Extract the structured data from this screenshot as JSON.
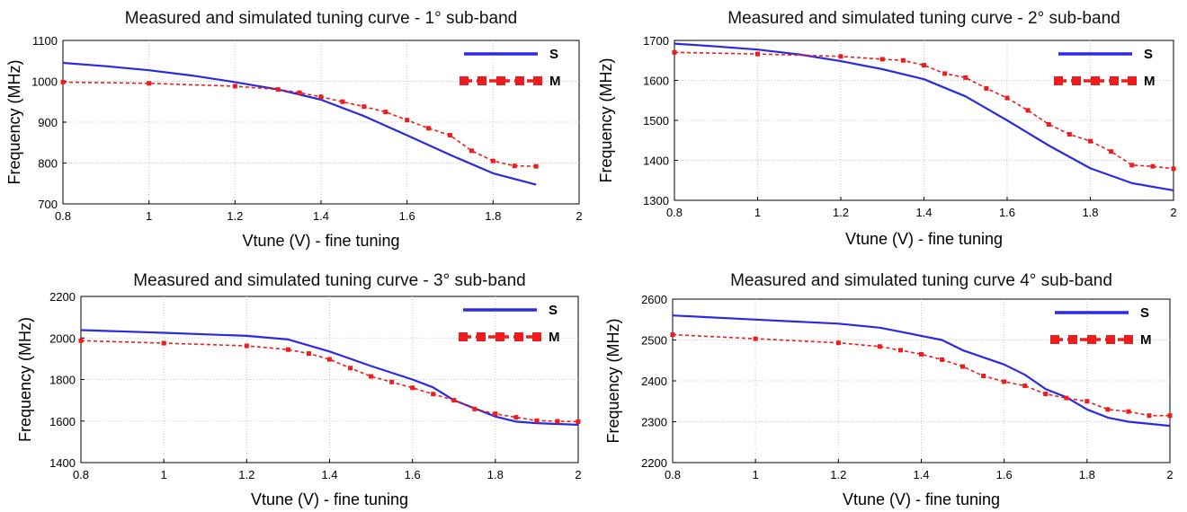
{
  "chart_data": [
    {
      "type": "line",
      "title": "Measured and simulated tuning curve - 1° sub-band",
      "xlabel": "Vtune (V)  -  fine tuning",
      "ylabel": "Frequency (MHz)",
      "xlim": [
        0.8,
        2
      ],
      "ylim": [
        700,
        1100
      ],
      "xticks": [
        "0.8",
        "1",
        "1.2",
        "1.4",
        "1.6",
        "1.8",
        "2"
      ],
      "yticks": [
        "700",
        "800",
        "900",
        "1000",
        "1100"
      ],
      "grid": true,
      "legend_position": "top-right",
      "colors": {
        "S": "#2a2ae0",
        "M": "#ee1c1c"
      },
      "series": [
        {
          "name": "S",
          "style": "solid",
          "x": [
            0.8,
            0.9,
            1.0,
            1.1,
            1.2,
            1.3,
            1.4,
            1.5,
            1.6,
            1.7,
            1.8,
            1.9
          ],
          "y": [
            1045,
            1037,
            1027,
            1014,
            998,
            980,
            955,
            915,
            868,
            820,
            775,
            747
          ]
        },
        {
          "name": "M",
          "style": "dashed-square-markers",
          "x": [
            0.8,
            1.0,
            1.2,
            1.3,
            1.35,
            1.4,
            1.45,
            1.5,
            1.55,
            1.6,
            1.65,
            1.7,
            1.75,
            1.8,
            1.85,
            1.9
          ],
          "y": [
            998,
            995,
            988,
            980,
            972,
            962,
            950,
            938,
            925,
            905,
            885,
            868,
            830,
            805,
            793,
            792
          ]
        }
      ]
    },
    {
      "type": "line",
      "title": "Measured and simulated tuning curve - 2° sub-band",
      "xlabel": "Vtune (V)  -  fine tuning",
      "ylabel": "Frequency (MHz)",
      "xlim": [
        0.8,
        2
      ],
      "ylim": [
        1300,
        1700
      ],
      "xticks": [
        "0.8",
        "1",
        "1.2",
        "1.4",
        "1.6",
        "1.8",
        "2"
      ],
      "yticks": [
        "1300",
        "1400",
        "1500",
        "1600",
        "1700"
      ],
      "grid": true,
      "legend_position": "top-right",
      "colors": {
        "S": "#2a2ae0",
        "M": "#ee1c1c"
      },
      "series": [
        {
          "name": "S",
          "style": "solid",
          "x": [
            0.8,
            0.9,
            1.0,
            1.1,
            1.2,
            1.3,
            1.4,
            1.5,
            1.6,
            1.7,
            1.8,
            1.9,
            2.0
          ],
          "y": [
            1692,
            1685,
            1677,
            1665,
            1648,
            1628,
            1603,
            1560,
            1500,
            1437,
            1380,
            1343,
            1325
          ]
        },
        {
          "name": "M",
          "style": "dashed-square-markers",
          "x": [
            0.8,
            1.0,
            1.2,
            1.3,
            1.35,
            1.4,
            1.45,
            1.5,
            1.55,
            1.6,
            1.65,
            1.7,
            1.75,
            1.8,
            1.85,
            1.9,
            1.95,
            2.0
          ],
          "y": [
            1670,
            1666,
            1660,
            1653,
            1650,
            1638,
            1617,
            1607,
            1580,
            1556,
            1525,
            1490,
            1465,
            1448,
            1422,
            1388,
            1385,
            1379
          ]
        }
      ]
    },
    {
      "type": "line",
      "title": "Measured and simulated tuning curve - 3° sub-band",
      "xlabel": "Vtune (V)  -  fine tuning",
      "ylabel": "Frequency (MHz)",
      "xlim": [
        0.8,
        2
      ],
      "ylim": [
        1400,
        2200
      ],
      "xticks": [
        "0.8",
        "1",
        "1.2",
        "1.4",
        "1.6",
        "1.8",
        "2"
      ],
      "yticks": [
        "1400",
        "1600",
        "1800",
        "2000",
        "2200"
      ],
      "grid": true,
      "legend_position": "top-right",
      "colors": {
        "S": "#2a2ae0",
        "M": "#ee1c1c"
      },
      "series": [
        {
          "name": "S",
          "style": "solid",
          "x": [
            0.8,
            1.0,
            1.2,
            1.3,
            1.4,
            1.5,
            1.6,
            1.65,
            1.7,
            1.8,
            1.85,
            1.9,
            2.0
          ],
          "y": [
            2038,
            2025,
            2010,
            1993,
            1935,
            1865,
            1800,
            1762,
            1700,
            1622,
            1597,
            1590,
            1582
          ]
        },
        {
          "name": "M",
          "style": "dashed-square-markers",
          "x": [
            0.8,
            1.0,
            1.2,
            1.3,
            1.35,
            1.4,
            1.45,
            1.5,
            1.55,
            1.6,
            1.65,
            1.7,
            1.75,
            1.8,
            1.85,
            1.9,
            1.95,
            2.0
          ],
          "y": [
            1987,
            1975,
            1962,
            1944,
            1925,
            1897,
            1855,
            1815,
            1788,
            1760,
            1730,
            1700,
            1658,
            1635,
            1618,
            1602,
            1599,
            1597
          ]
        }
      ]
    },
    {
      "type": "line",
      "title": "Measured and simulated tuning curve 4° sub-band",
      "xlabel": "Vtune (V)  -  fine tuning",
      "ylabel": "Frequency (MHz)",
      "xlim": [
        0.8,
        2
      ],
      "ylim": [
        2200,
        2600
      ],
      "xticks": [
        "0.8",
        "1",
        "1.2",
        "1.4",
        "1.6",
        "1.8",
        "2"
      ],
      "yticks": [
        "2200",
        "2300",
        "2400",
        "2500",
        "2600"
      ],
      "grid": true,
      "legend_position": "top-right",
      "colors": {
        "S": "#2a2ae0",
        "M": "#ee1c1c"
      },
      "series": [
        {
          "name": "S",
          "style": "solid",
          "x": [
            0.8,
            1.0,
            1.2,
            1.3,
            1.4,
            1.45,
            1.5,
            1.6,
            1.65,
            1.7,
            1.75,
            1.8,
            1.85,
            1.9,
            2.0
          ],
          "y": [
            2560,
            2550,
            2540,
            2530,
            2510,
            2500,
            2475,
            2440,
            2415,
            2380,
            2360,
            2330,
            2310,
            2300,
            2290
          ]
        },
        {
          "name": "M",
          "style": "dashed-square-markers",
          "x": [
            0.8,
            1.0,
            1.2,
            1.3,
            1.35,
            1.4,
            1.45,
            1.5,
            1.55,
            1.6,
            1.65,
            1.7,
            1.75,
            1.8,
            1.85,
            1.9,
            1.95,
            2.0
          ],
          "y": [
            2513,
            2503,
            2493,
            2484,
            2475,
            2465,
            2452,
            2435,
            2412,
            2398,
            2388,
            2368,
            2358,
            2350,
            2330,
            2325,
            2315,
            2315
          ]
        }
      ]
    }
  ]
}
